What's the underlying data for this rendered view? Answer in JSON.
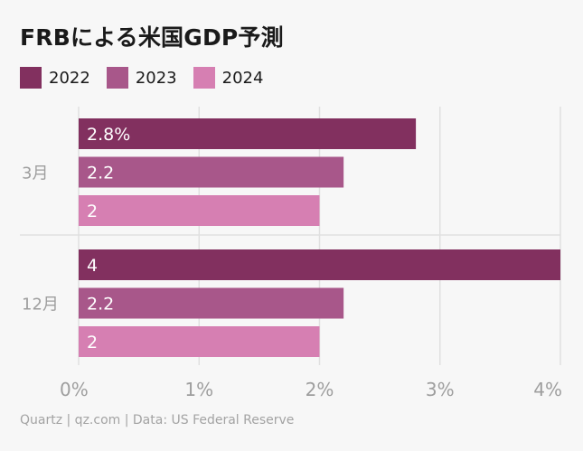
{
  "title": "FRBによる米国GDP予測",
  "source": "Quartz | qz.com | Data: US Federal Reserve",
  "colors": {
    "2022": "#82305f",
    "2023": "#a8578a",
    "2024": "#d67fb2",
    "grid": "#e0e0e0",
    "axis_text": "#9e9e9e"
  },
  "chart_data": {
    "type": "bar",
    "orientation": "horizontal",
    "categories": [
      "3月",
      "12月"
    ],
    "series": [
      {
        "name": "2022",
        "values": [
          2.8,
          4
        ],
        "labels": [
          "2.8%",
          "4"
        ]
      },
      {
        "name": "2023",
        "values": [
          2.2,
          2.2
        ],
        "labels": [
          "2.2",
          "2.2"
        ]
      },
      {
        "name": "2024",
        "values": [
          2,
          2
        ],
        "labels": [
          "2",
          "2"
        ]
      }
    ],
    "xlim": [
      0,
      4
    ],
    "ticks": [
      0,
      1,
      2,
      3,
      4
    ],
    "tick_labels": [
      "0%",
      "1%",
      "2%",
      "3%",
      "4%"
    ],
    "grid": true,
    "legend": "top-left"
  }
}
